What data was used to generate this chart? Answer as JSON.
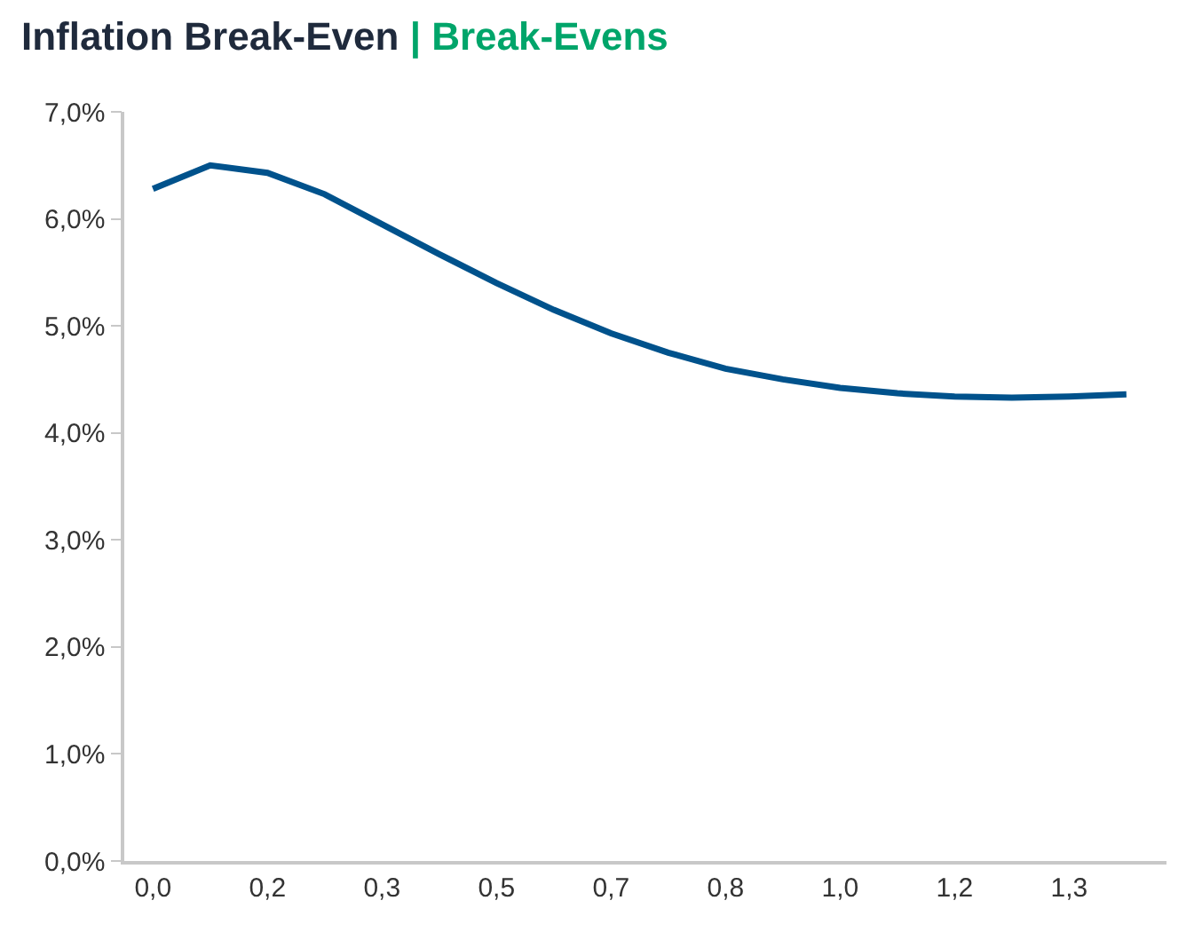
{
  "chart_data": {
    "type": "line",
    "title": "Inflation Break-Even",
    "subtitle": "| Break-Evens",
    "categories": [
      "0,0",
      null,
      "0,2",
      null,
      "0,3",
      null,
      "0,5",
      null,
      "0,7",
      null,
      "0,8",
      null,
      "1,0",
      null,
      "1,2",
      null,
      "1,3",
      null
    ],
    "series": [
      {
        "color": "#00528c",
        "values": [
          6.28,
          6.5,
          6.43,
          6.23,
          5.95,
          5.67,
          5.4,
          5.15,
          4.93,
          4.75,
          4.6,
          4.5,
          4.42,
          4.37,
          4.34,
          4.33,
          4.34,
          4.36
        ]
      }
    ],
    "ylim": [
      0,
      7
    ],
    "yticks": [
      {
        "value": 0,
        "label": "0,0%"
      },
      {
        "value": 1,
        "label": "1,0%"
      },
      {
        "value": 2,
        "label": "2,0%"
      },
      {
        "value": 3,
        "label": "3,0%"
      },
      {
        "value": 4,
        "label": "4,0%"
      },
      {
        "value": 5,
        "label": "5,0%"
      },
      {
        "value": 6,
        "label": "6,0%"
      },
      {
        "value": 7,
        "label": "7,0%"
      }
    ],
    "grid": false,
    "marker": "none",
    "line_style": "solid"
  }
}
